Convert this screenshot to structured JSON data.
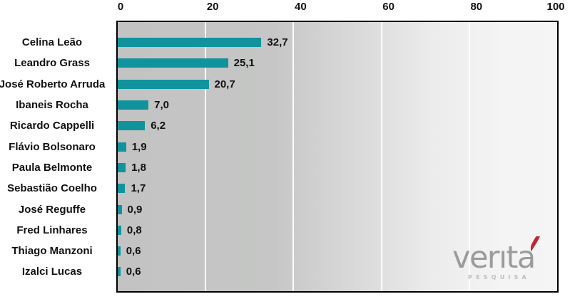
{
  "chart_data": {
    "type": "bar",
    "orientation": "horizontal",
    "title": "",
    "categories": [
      "Celina Leão",
      "Leandro Grass",
      "José Roberto Arruda",
      "Ibaneis Rocha",
      "Ricardo Cappelli",
      "Flávio Bolsonaro",
      "Paula Belmonte",
      "Sebastião Coelho",
      "José Reguffe",
      "Fred Linhares",
      "Thiago Manzoni",
      "Izalci Lucas"
    ],
    "values": [
      32.7,
      25.1,
      20.7,
      7.0,
      6.2,
      1.9,
      1.8,
      1.7,
      0.9,
      0.8,
      0.6,
      0.6
    ],
    "value_labels": [
      "32,7",
      "25,1",
      "20,7",
      "7,0",
      "6,2",
      "1,9",
      "1,8",
      "1,7",
      "0,9",
      "0,8",
      "0,6",
      "0,6"
    ],
    "xlim": [
      0,
      100
    ],
    "x_ticks": [
      0,
      20,
      40,
      60,
      80,
      100
    ],
    "bar_color": "#10939d",
    "grid": true,
    "legend": false
  },
  "logo": {
    "brand": "verıta",
    "subtitle": "PESQUISA",
    "text_color": "#9b9b9b",
    "accent_color": "#c32531"
  }
}
